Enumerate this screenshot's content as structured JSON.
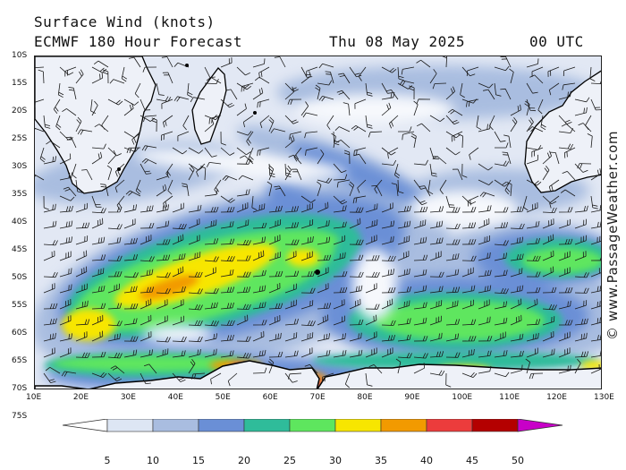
{
  "header": {
    "title_line1": "Surface Wind (knots)",
    "title_line2": "ECMWF 180 Hour Forecast",
    "date": "Thu 08 May 2025",
    "time": "00 UTC"
  },
  "credit": "© www.PassageWeather.com",
  "map": {
    "lat_labels": [
      "10S",
      "15S",
      "20S",
      "25S",
      "30S",
      "35S",
      "40S",
      "45S",
      "50S",
      "55S",
      "60S",
      "65S",
      "70S",
      "75S"
    ],
    "lon_labels": [
      "10E",
      "20E",
      "30E",
      "40E",
      "50E",
      "60E",
      "70E",
      "80E",
      "90E",
      "100E",
      "110E",
      "120E",
      "130E"
    ],
    "colors": {
      "ocean_light": "#e2e8f4",
      "land": "#eef1f8",
      "coast": "#000000",
      "barb": "#1a1a1a"
    }
  },
  "legend": {
    "labels": [
      "5",
      "10",
      "15",
      "20",
      "25",
      "30",
      "35",
      "40",
      "45",
      "50"
    ],
    "colors": [
      "#ffffff",
      "#dde6f4",
      "#a9bde0",
      "#6a8fd6",
      "#2fbc9a",
      "#5ee65e",
      "#f7e600",
      "#f29a00",
      "#ec3c3c",
      "#b40000",
      "#c800c8"
    ]
  }
}
